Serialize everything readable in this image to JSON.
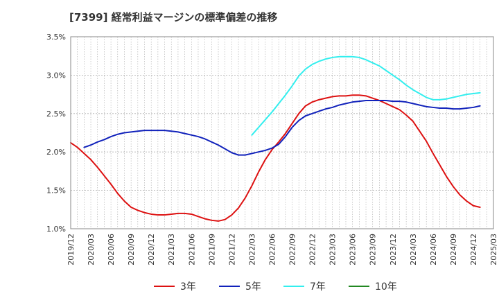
{
  "title": "[7399]  経常利益マージンの標準偏差の推移",
  "chart_data": {
    "type": "line",
    "title": "[7399]  経常利益マージンの標準偏差の推移",
    "xlabel": "",
    "ylabel": "",
    "ylim": [
      1.0,
      3.5
    ],
    "yticks": [
      "1.0%",
      "1.5%",
      "2.0%",
      "2.5%",
      "3.0%",
      "3.5%"
    ],
    "yticks_values": [
      1.0,
      1.5,
      2.0,
      2.5,
      3.0,
      3.5
    ],
    "xticks": [
      "2019/12",
      "2020/03",
      "2020/06",
      "2020/09",
      "2020/12",
      "2021/03",
      "2021/06",
      "2021/09",
      "2021/12",
      "2022/03",
      "2022/06",
      "2022/09",
      "2022/12",
      "2023/03",
      "2023/06",
      "2023/09",
      "2023/12",
      "2024/03",
      "2024/06",
      "2024/09",
      "2024/12",
      "2025/03"
    ],
    "grid": true,
    "legend_position": "bottom",
    "series": [
      {
        "name": "3年",
        "color": "#dd1111",
        "points": [
          [
            "2019/12",
            2.12
          ],
          [
            "2020/01",
            2.06
          ],
          [
            "2020/02",
            1.98
          ],
          [
            "2020/03",
            1.9
          ],
          [
            "2020/04",
            1.8
          ],
          [
            "2020/05",
            1.69
          ],
          [
            "2020/06",
            1.58
          ],
          [
            "2020/07",
            1.46
          ],
          [
            "2020/08",
            1.36
          ],
          [
            "2020/09",
            1.28
          ],
          [
            "2020/10",
            1.24
          ],
          [
            "2020/11",
            1.21
          ],
          [
            "2020/12",
            1.19
          ],
          [
            "2021/01",
            1.18
          ],
          [
            "2021/02",
            1.18
          ],
          [
            "2021/03",
            1.19
          ],
          [
            "2021/04",
            1.2
          ],
          [
            "2021/05",
            1.2
          ],
          [
            "2021/06",
            1.19
          ],
          [
            "2021/07",
            1.16
          ],
          [
            "2021/08",
            1.13
          ],
          [
            "2021/09",
            1.11
          ],
          [
            "2021/10",
            1.1
          ],
          [
            "2021/11",
            1.12
          ],
          [
            "2021/12",
            1.18
          ],
          [
            "2022/01",
            1.27
          ],
          [
            "2022/02",
            1.4
          ],
          [
            "2022/03",
            1.56
          ],
          [
            "2022/04",
            1.74
          ],
          [
            "2022/05",
            1.9
          ],
          [
            "2022/06",
            2.03
          ],
          [
            "2022/07",
            2.13
          ],
          [
            "2022/08",
            2.24
          ],
          [
            "2022/09",
            2.37
          ],
          [
            "2022/10",
            2.5
          ],
          [
            "2022/11",
            2.6
          ],
          [
            "2022/12",
            2.65
          ],
          [
            "2023/01",
            2.68
          ],
          [
            "2023/02",
            2.7
          ],
          [
            "2023/03",
            2.72
          ],
          [
            "2023/04",
            2.73
          ],
          [
            "2023/05",
            2.73
          ],
          [
            "2023/06",
            2.74
          ],
          [
            "2023/07",
            2.74
          ],
          [
            "2023/08",
            2.73
          ],
          [
            "2023/09",
            2.7
          ],
          [
            "2023/10",
            2.67
          ],
          [
            "2023/11",
            2.63
          ],
          [
            "2023/12",
            2.59
          ],
          [
            "2024/01",
            2.55
          ],
          [
            "2024/02",
            2.48
          ],
          [
            "2024/03",
            2.4
          ],
          [
            "2024/04",
            2.27
          ],
          [
            "2024/05",
            2.14
          ],
          [
            "2024/06",
            1.98
          ],
          [
            "2024/07",
            1.83
          ],
          [
            "2024/08",
            1.68
          ],
          [
            "2024/09",
            1.55
          ],
          [
            "2024/10",
            1.44
          ],
          [
            "2024/11",
            1.36
          ],
          [
            "2024/12",
            1.3
          ],
          [
            "2025/01",
            1.28
          ]
        ]
      },
      {
        "name": "5年",
        "color": "#1122bb",
        "points": [
          [
            "2020/02",
            2.06
          ],
          [
            "2020/03",
            2.09
          ],
          [
            "2020/04",
            2.13
          ],
          [
            "2020/05",
            2.16
          ],
          [
            "2020/06",
            2.2
          ],
          [
            "2020/07",
            2.23
          ],
          [
            "2020/08",
            2.25
          ],
          [
            "2020/09",
            2.26
          ],
          [
            "2020/10",
            2.27
          ],
          [
            "2020/11",
            2.28
          ],
          [
            "2020/12",
            2.28
          ],
          [
            "2021/01",
            2.28
          ],
          [
            "2021/02",
            2.28
          ],
          [
            "2021/03",
            2.27
          ],
          [
            "2021/04",
            2.26
          ],
          [
            "2021/05",
            2.24
          ],
          [
            "2021/06",
            2.22
          ],
          [
            "2021/07",
            2.2
          ],
          [
            "2021/08",
            2.17
          ],
          [
            "2021/09",
            2.13
          ],
          [
            "2021/10",
            2.09
          ],
          [
            "2021/11",
            2.04
          ],
          [
            "2021/12",
            1.99
          ],
          [
            "2022/01",
            1.96
          ],
          [
            "2022/02",
            1.96
          ],
          [
            "2022/03",
            1.98
          ],
          [
            "2022/04",
            2.0
          ],
          [
            "2022/05",
            2.02
          ],
          [
            "2022/06",
            2.05
          ],
          [
            "2022/07",
            2.1
          ],
          [
            "2022/08",
            2.2
          ],
          [
            "2022/09",
            2.32
          ],
          [
            "2022/10",
            2.41
          ],
          [
            "2022/11",
            2.47
          ],
          [
            "2022/12",
            2.5
          ],
          [
            "2023/01",
            2.53
          ],
          [
            "2023/02",
            2.56
          ],
          [
            "2023/03",
            2.58
          ],
          [
            "2023/04",
            2.61
          ],
          [
            "2023/05",
            2.63
          ],
          [
            "2023/06",
            2.65
          ],
          [
            "2023/07",
            2.66
          ],
          [
            "2023/08",
            2.67
          ],
          [
            "2023/09",
            2.67
          ],
          [
            "2023/10",
            2.67
          ],
          [
            "2023/11",
            2.67
          ],
          [
            "2023/12",
            2.66
          ],
          [
            "2024/01",
            2.66
          ],
          [
            "2024/02",
            2.65
          ],
          [
            "2024/03",
            2.63
          ],
          [
            "2024/04",
            2.61
          ],
          [
            "2024/05",
            2.59
          ],
          [
            "2024/06",
            2.58
          ],
          [
            "2024/07",
            2.57
          ],
          [
            "2024/08",
            2.57
          ],
          [
            "2024/09",
            2.56
          ],
          [
            "2024/10",
            2.56
          ],
          [
            "2024/11",
            2.57
          ],
          [
            "2024/12",
            2.58
          ],
          [
            "2025/01",
            2.6
          ]
        ]
      },
      {
        "name": "7年",
        "color": "#33eeee",
        "points": [
          [
            "2022/03",
            2.22
          ],
          [
            "2022/04",
            2.32
          ],
          [
            "2022/05",
            2.42
          ],
          [
            "2022/06",
            2.52
          ],
          [
            "2022/07",
            2.63
          ],
          [
            "2022/08",
            2.74
          ],
          [
            "2022/09",
            2.86
          ],
          [
            "2022/10",
            2.99
          ],
          [
            "2022/11",
            3.08
          ],
          [
            "2022/12",
            3.14
          ],
          [
            "2023/01",
            3.18
          ],
          [
            "2023/02",
            3.21
          ],
          [
            "2023/03",
            3.23
          ],
          [
            "2023/04",
            3.24
          ],
          [
            "2023/05",
            3.24
          ],
          [
            "2023/06",
            3.24
          ],
          [
            "2023/07",
            3.23
          ],
          [
            "2023/08",
            3.2
          ],
          [
            "2023/09",
            3.16
          ],
          [
            "2023/10",
            3.12
          ],
          [
            "2023/11",
            3.06
          ],
          [
            "2023/12",
            3.0
          ],
          [
            "2024/01",
            2.94
          ],
          [
            "2024/02",
            2.87
          ],
          [
            "2024/03",
            2.81
          ],
          [
            "2024/04",
            2.76
          ],
          [
            "2024/05",
            2.71
          ],
          [
            "2024/06",
            2.68
          ],
          [
            "2024/07",
            2.68
          ],
          [
            "2024/08",
            2.69
          ],
          [
            "2024/09",
            2.71
          ],
          [
            "2024/10",
            2.73
          ],
          [
            "2024/11",
            2.75
          ],
          [
            "2024/12",
            2.76
          ],
          [
            "2025/01",
            2.77
          ]
        ]
      },
      {
        "name": "10年",
        "color": "#228822",
        "points": []
      }
    ]
  }
}
